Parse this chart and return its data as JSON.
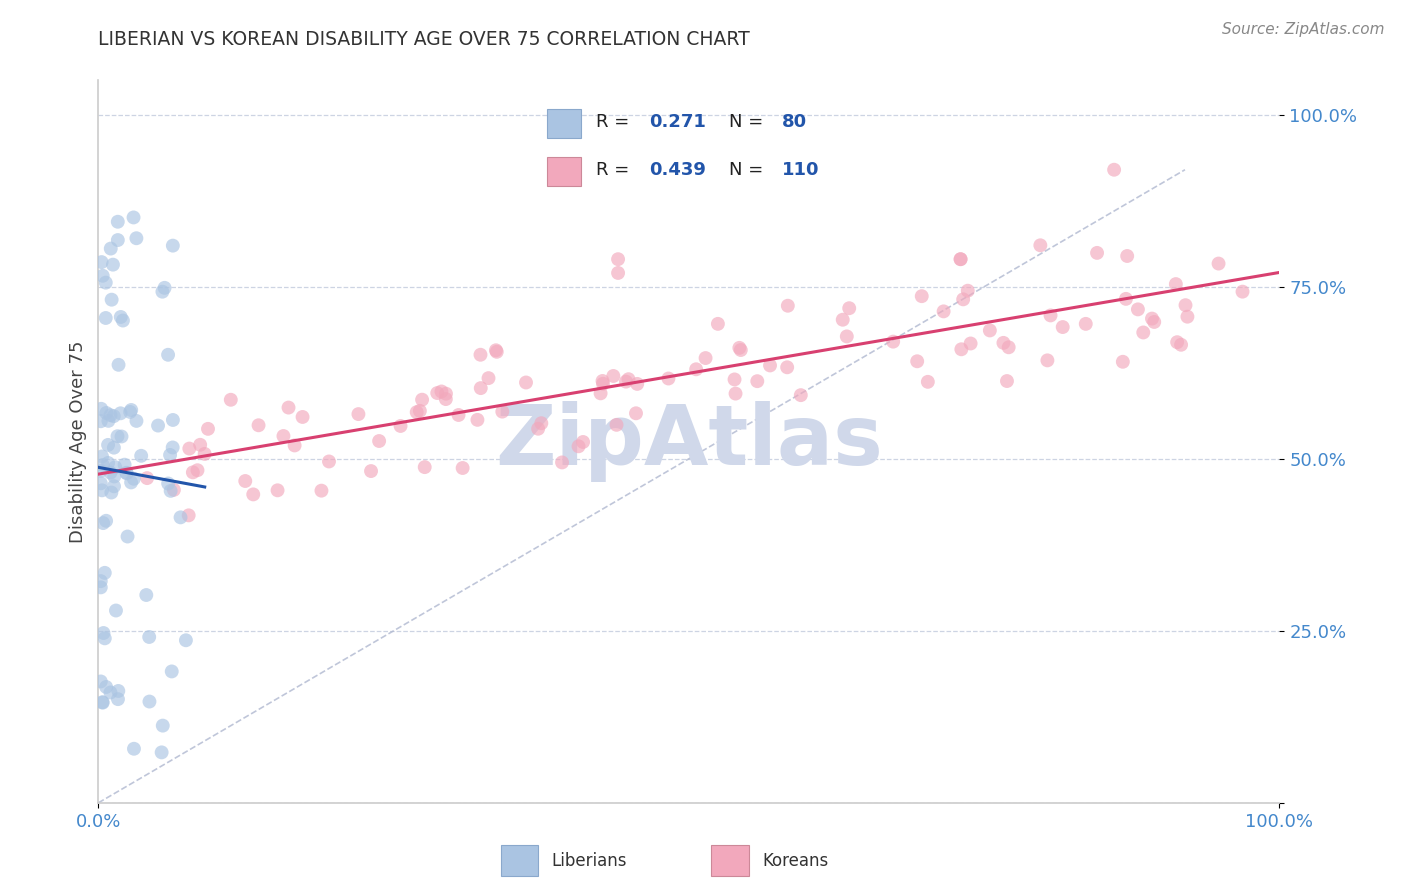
{
  "title": "LIBERIAN VS KOREAN DISABILITY AGE OVER 75 CORRELATION CHART",
  "source": "Source: ZipAtlas.com",
  "ylabel": "Disability Age Over 75",
  "xmin": 0.0,
  "xmax": 1.0,
  "ymin": 0.0,
  "ymax": 1.05,
  "liberian_R": 0.271,
  "liberian_N": 80,
  "korean_R": 0.439,
  "korean_N": 110,
  "liberian_color": "#aac4e2",
  "korean_color": "#f2a8bc",
  "liberian_edge_color": "#aac4e2",
  "korean_edge_color": "#f2a8bc",
  "liberian_line_color": "#2255aa",
  "korean_line_color": "#d84070",
  "diagonal_color": "#b0b8d0",
  "background_color": "#ffffff",
  "watermark_color": "#d0d8ea",
  "grid_color": "#c8d0e0",
  "axis_color": "#cccccc",
  "tick_color": "#4488cc",
  "title_color": "#333333",
  "ylabel_color": "#444444",
  "source_color": "#888888",
  "ytick_vals": [
    0.0,
    0.25,
    0.5,
    0.75,
    1.0
  ],
  "ytick_labels": [
    "",
    "25.0%",
    "50.0%",
    "75.0%",
    "100.0%"
  ],
  "marker_size": 100,
  "marker_alpha": 0.65
}
